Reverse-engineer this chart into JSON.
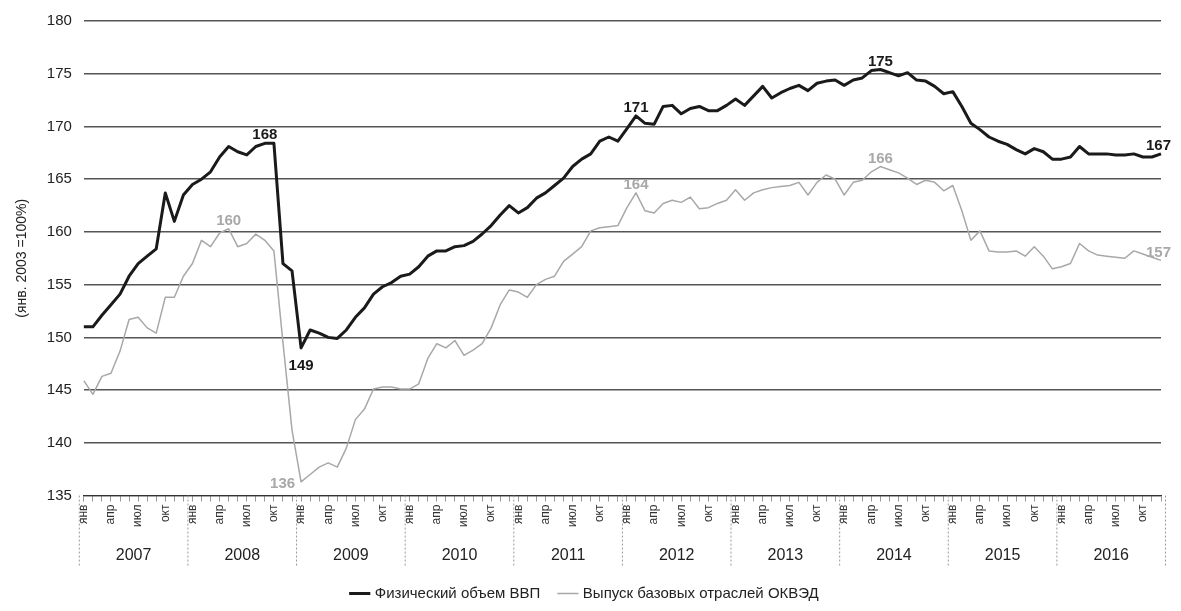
{
  "chart_data": {
    "type": "line",
    "ylabel": "(янв. 2003 =100%)",
    "categories": [
      "янв",
      null,
      null,
      "апр",
      null,
      null,
      "июл",
      null,
      null,
      "окт",
      null,
      null,
      "янв",
      null,
      null,
      "апр",
      null,
      null,
      "июл",
      null,
      null,
      "окт",
      null,
      null,
      "янв",
      null,
      null,
      "апр",
      null,
      null,
      "июл",
      null,
      null,
      "окт",
      null,
      null,
      "янв",
      null,
      null,
      "апр",
      null,
      null,
      "июл",
      null,
      null,
      "окт",
      null,
      null,
      "янв",
      null,
      null,
      "апр",
      null,
      null,
      "июл",
      null,
      null,
      "окт",
      null,
      null,
      "янв",
      null,
      null,
      "апр",
      null,
      null,
      "июл",
      null,
      null,
      "окт",
      null,
      null,
      "янв",
      null,
      null,
      "апр",
      null,
      null,
      "июл",
      null,
      null,
      "окт",
      null,
      null,
      "янв",
      null,
      null,
      "апр",
      null,
      null,
      "июл",
      null,
      null,
      "окт",
      null,
      null,
      "янв",
      null,
      null,
      "апр",
      null,
      null,
      "июл",
      null,
      null,
      "окт",
      null,
      null,
      "янв",
      null,
      null,
      "апр",
      null,
      null,
      "июл",
      null,
      null,
      "окт",
      null,
      null
    ],
    "series": [
      {
        "name": "Физический объем ВВП",
        "color": "#1a1a1a",
        "values": [
          151.0,
          151.0,
          152.1,
          153.1,
          154.1,
          155.8,
          157.0,
          157.7,
          158.4,
          163.7,
          161.0,
          163.5,
          164.5,
          165.0,
          165.7,
          167.1,
          168.1,
          167.6,
          167.3,
          168.1,
          168.4,
          168.4,
          157.0,
          156.3,
          149.0,
          150.7,
          150.4,
          150.0,
          149.9,
          150.7,
          151.9,
          152.8,
          154.1,
          154.8,
          155.2,
          155.8,
          156.0,
          156.7,
          157.7,
          158.2,
          158.2,
          158.6,
          158.7,
          159.1,
          159.8,
          160.6,
          161.6,
          162.5,
          161.8,
          162.3,
          163.2,
          163.7,
          164.4,
          165.1,
          166.2,
          166.9,
          167.4,
          168.6,
          169.0,
          168.6,
          169.8,
          171.0,
          170.3,
          170.2,
          171.9,
          172.0,
          171.2,
          171.7,
          171.9,
          171.5,
          171.5,
          172.0,
          172.6,
          172.0,
          172.9,
          173.8,
          172.7,
          173.2,
          173.6,
          173.9,
          173.4,
          174.1,
          174.3,
          174.4,
          173.9,
          174.4,
          174.6,
          175.3,
          175.4,
          175.1,
          174.8,
          175.1,
          174.4,
          174.3,
          173.8,
          173.1,
          173.3,
          171.9,
          170.3,
          169.7,
          169.0,
          168.6,
          168.3,
          167.8,
          167.4,
          167.9,
          167.6,
          166.9,
          166.9,
          167.1,
          168.1,
          167.4,
          167.4,
          167.4,
          167.3,
          167.3,
          167.4,
          167.1,
          167.1,
          167.4
        ],
        "value_labels": [
          null,
          null,
          null,
          null,
          null,
          null,
          null,
          null,
          null,
          null,
          null,
          null,
          null,
          null,
          null,
          null,
          null,
          null,
          null,
          null,
          "168",
          null,
          null,
          null,
          "149",
          null,
          null,
          null,
          null,
          null,
          null,
          null,
          null,
          null,
          null,
          null,
          null,
          null,
          null,
          null,
          null,
          null,
          null,
          null,
          null,
          null,
          null,
          null,
          null,
          null,
          null,
          null,
          null,
          null,
          null,
          null,
          null,
          null,
          null,
          null,
          null,
          "171",
          null,
          null,
          null,
          null,
          null,
          null,
          null,
          null,
          null,
          null,
          null,
          null,
          null,
          null,
          null,
          null,
          null,
          null,
          null,
          null,
          null,
          null,
          null,
          null,
          null,
          null,
          "175",
          null,
          null,
          null,
          null,
          null,
          null,
          null,
          null,
          null,
          null,
          null,
          null,
          null,
          null,
          null,
          null,
          null,
          null,
          null,
          null,
          null,
          null,
          null,
          null,
          null,
          null,
          null,
          null,
          null,
          null,
          "167"
        ]
      },
      {
        "name": "Выпуск базовых отраслей ОКВЭД",
        "color": "#a8a8a8",
        "values": [
          145.9,
          144.6,
          146.3,
          146.6,
          148.7,
          151.7,
          151.9,
          150.9,
          150.4,
          153.8,
          153.8,
          155.8,
          157.0,
          159.2,
          158.6,
          159.9,
          160.3,
          158.6,
          158.9,
          159.8,
          159.2,
          158.2,
          149.5,
          141.2,
          136.3,
          137.0,
          137.7,
          138.1,
          137.7,
          139.5,
          142.2,
          143.2,
          145.1,
          145.3,
          145.3,
          145.1,
          145.1,
          145.6,
          148.0,
          149.4,
          149.0,
          149.7,
          148.3,
          148.8,
          149.4,
          150.9,
          153.1,
          154.5,
          154.3,
          153.8,
          155.0,
          155.5,
          155.8,
          157.2,
          157.9,
          158.6,
          160.1,
          160.4,
          160.5,
          160.6,
          162.3,
          163.7,
          162.0,
          161.8,
          162.7,
          163.0,
          162.8,
          163.3,
          162.2,
          162.3,
          162.7,
          163.0,
          164.0,
          163.0,
          163.7,
          164.0,
          164.2,
          164.3,
          164.4,
          164.7,
          163.5,
          164.7,
          165.4,
          165.0,
          163.5,
          164.7,
          164.9,
          165.7,
          166.2,
          165.9,
          165.6,
          165.1,
          164.5,
          164.9,
          164.7,
          163.9,
          164.4,
          162.0,
          159.2,
          160.1,
          158.2,
          158.1,
          158.1,
          158.2,
          157.7,
          158.6,
          157.7,
          156.5,
          156.7,
          157.0,
          158.9,
          158.2,
          157.8,
          157.7,
          157.6,
          157.5,
          158.2,
          157.9,
          157.6,
          157.3
        ],
        "value_labels": [
          null,
          null,
          null,
          null,
          null,
          null,
          null,
          null,
          null,
          null,
          null,
          null,
          null,
          null,
          null,
          null,
          "160",
          null,
          null,
          null,
          null,
          null,
          null,
          null,
          "136",
          null,
          null,
          null,
          null,
          null,
          null,
          null,
          null,
          null,
          null,
          null,
          null,
          null,
          null,
          null,
          null,
          null,
          null,
          null,
          null,
          null,
          null,
          null,
          null,
          null,
          null,
          null,
          null,
          null,
          null,
          null,
          null,
          null,
          null,
          null,
          null,
          "164",
          null,
          null,
          null,
          null,
          null,
          null,
          null,
          null,
          null,
          null,
          null,
          null,
          null,
          null,
          null,
          null,
          null,
          null,
          null,
          null,
          null,
          null,
          null,
          null,
          null,
          null,
          "166",
          null,
          null,
          null,
          null,
          null,
          null,
          null,
          null,
          null,
          null,
          null,
          null,
          null,
          null,
          null,
          null,
          null,
          null,
          null,
          null,
          null,
          null,
          null,
          null,
          null,
          null,
          null,
          null,
          null,
          null,
          "157"
        ]
      }
    ],
    "annotations": [
      "2007",
      "2008",
      "2009",
      "2010",
      "2011",
      "2012",
      "2013",
      "2014",
      "2015",
      "2016"
    ],
    "ylim": [
      135,
      180
    ],
    "yticks": [
      135,
      140,
      145,
      150,
      155,
      160,
      165,
      170,
      175,
      180
    ],
    "grid": "y",
    "legend": "bottom",
    "marker": "none",
    "line_style": "solid"
  }
}
